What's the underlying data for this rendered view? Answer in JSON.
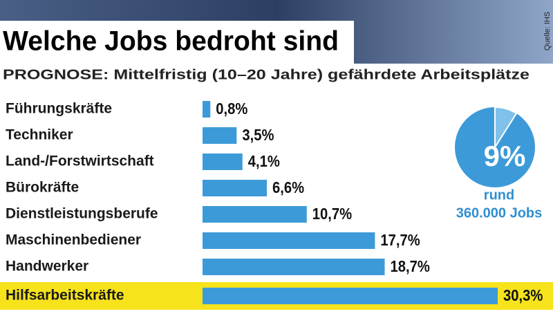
{
  "title": "Welche Jobs bedroht sind",
  "subtitle": "PROGNOSE: Mittelfristig (10–20 Jahre) gefährdete Arbeitsplätze",
  "source": "Quelle: IHS",
  "chart_data": [
    {
      "type": "hbar",
      "categories": [
        "Führungskräfte",
        "Techniker",
        "Land-/Forstwirtschaft",
        "Bürokräfte",
        "Dienstleistungsberufe",
        "Maschinenbediener",
        "Handwerker",
        "Hilfsarbeitskräfte"
      ],
      "values": [
        0.8,
        3.5,
        4.1,
        6.6,
        10.7,
        17.7,
        18.7,
        30.3
      ],
      "value_labels": [
        "0,8%",
        "3,5%",
        "4,1%",
        "6,6%",
        "10,7%",
        "17,7%",
        "18,7%",
        "30,3%"
      ],
      "color": "#3d9ad8",
      "xlim": [
        0,
        30.3
      ],
      "highlight_index": 7,
      "highlight_color": "#f6e31c"
    },
    {
      "type": "pie",
      "values": [
        9
      ],
      "value_labels": [
        "9%"
      ],
      "total": 100,
      "color": "#7fc1ea",
      "rest_color": "#3d9ad8",
      "annotation": [
        "rund",
        "360.000 Jobs"
      ]
    }
  ]
}
